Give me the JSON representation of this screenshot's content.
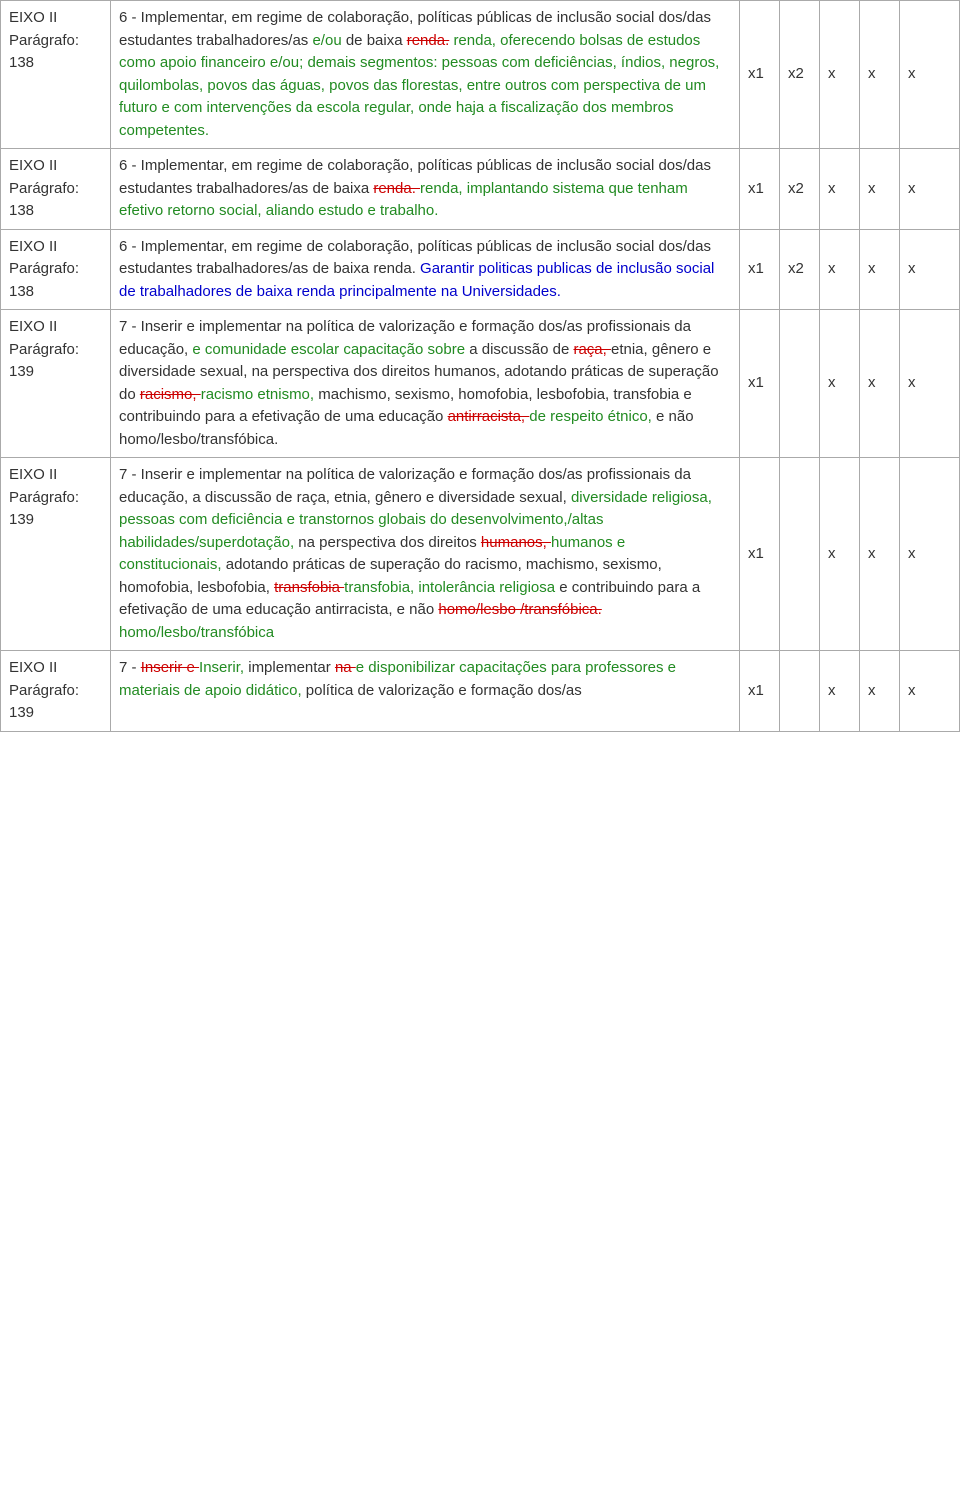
{
  "table": {
    "border_color": "#aaaaaa",
    "background": "#ffffff"
  },
  "colors": {
    "text": "#333333",
    "deleted": "#cc0000",
    "inserted": "#228b22",
    "alt_inserted": "#0000cc"
  },
  "fonts": {
    "family": "Verdana",
    "size_pt": 11
  },
  "rows": [
    {
      "label_line1": "EIXO II",
      "label_line2": "Parágrafo:",
      "label_line3": "138",
      "segments": [
        {
          "t": "6 - Implementar, em regime de colaboração, políticas públicas de inclusão social dos/das estudantes trabalhadores/as ",
          "c": "text"
        },
        {
          "t": "e/ou",
          "c": "ins"
        },
        {
          "t": " de baixa ",
          "c": "text"
        },
        {
          "t": "renda.",
          "c": "strike"
        },
        {
          "t": " ",
          "c": "text"
        },
        {
          "t": "renda, oferecendo bolsas de estudos como apoio financeiro e/ou; demais segmentos: pessoas com deficiências, índios, negros, quilombolas, povos das águas, povos das florestas, entre outros com perspectiva de um futuro e com intervenções da escola regular, onde haja a fiscalização dos membros competentes.",
          "c": "ins"
        }
      ],
      "marks": [
        "x1",
        "x2",
        "x",
        "x",
        "x"
      ]
    },
    {
      "label_line1": "EIXO II",
      "label_line2": "Parágrafo:",
      "label_line3": "138",
      "segments": [
        {
          "t": "6 - Implementar, em regime de colaboração, políticas públicas de inclusão social dos/das estudantes trabalhadores/as de baixa ",
          "c": "text"
        },
        {
          "t": "renda. ",
          "c": "strike"
        },
        {
          "t": "renda, implantando sistema que tenham efetivo retorno social, aliando estudo e trabalho.",
          "c": "ins"
        }
      ],
      "marks": [
        "x1",
        "x2",
        "x",
        "x",
        "x"
      ]
    },
    {
      "label_line1": "EIXO II",
      "label_line2": "Parágrafo:",
      "label_line3": "138",
      "segments": [
        {
          "t": "6 - Implementar, em regime de colaboração, políticas públicas de inclusão social dos/das estudantes trabalhadores/as de baixa renda. ",
          "c": "text"
        },
        {
          "t": "Garantir politicas publicas de inclusão social de trabalhadores de baixa renda principalmente na Universidades.",
          "c": "blue"
        }
      ],
      "marks": [
        "x1",
        "x2",
        "x",
        "x",
        "x"
      ]
    },
    {
      "label_line1": "EIXO II",
      "label_line2": "Parágrafo:",
      "label_line3": "139",
      "segments": [
        {
          "t": "7 - Inserir e implementar na política de valorização e formação dos/as profissionais da educação, ",
          "c": "text"
        },
        {
          "t": "e comunidade escolar capacitação sobre",
          "c": "ins"
        },
        {
          "t": " a discussão de ",
          "c": "text"
        },
        {
          "t": "raça, ",
          "c": "strike"
        },
        {
          "t": "etnia, gênero e diversidade sexual, na perspectiva dos direitos humanos, adotando práticas de superação do ",
          "c": "text"
        },
        {
          "t": "racismo, ",
          "c": "strike"
        },
        {
          "t": "racismo etnismo,",
          "c": "ins"
        },
        {
          "t": " machismo, sexismo, homofobia, lesbofobia, transfobia e contribuindo para a efetivação de uma educação ",
          "c": "text"
        },
        {
          "t": "antirracista, ",
          "c": "strike"
        },
        {
          "t": "de respeito étnico,",
          "c": "ins"
        },
        {
          "t": " e não homo/lesbo/transfóbica.",
          "c": "text"
        }
      ],
      "marks": [
        "x1",
        "",
        "x",
        "x",
        "x"
      ]
    },
    {
      "label_line1": "EIXO II",
      "label_line2": "Parágrafo:",
      "label_line3": "139",
      "segments": [
        {
          "t": "7 - Inserir e implementar na política de valorização e formação dos/as profissionais da educação, a discussão de raça, etnia, gênero e diversidade sexual, ",
          "c": "text"
        },
        {
          "t": "diversidade religiosa, pessoas com deficiência e transtornos globais do desenvolvimento,/altas habilidades/superdotação,",
          "c": "ins"
        },
        {
          "t": " na perspectiva dos direitos ",
          "c": "text"
        },
        {
          "t": "humanos, ",
          "c": "strike"
        },
        {
          "t": "humanos e constitucionais,",
          "c": "ins"
        },
        {
          "t": " adotando práticas de superação do racismo, machismo, sexismo, homofobia, lesbofobia, ",
          "c": "text"
        },
        {
          "t": "transfobia ",
          "c": "strike"
        },
        {
          "t": "transfobia, intolerância religiosa",
          "c": "ins"
        },
        {
          "t": " e contribuindo para a efetivação de uma educação antirracista, e não ",
          "c": "text"
        },
        {
          "t": "homo/lesbo /transfóbica. ",
          "c": "strike"
        },
        {
          "t": "homo/lesbo/transfóbica",
          "c": "ins"
        }
      ],
      "marks": [
        "x1",
        "",
        "x",
        "x",
        "x"
      ]
    },
    {
      "label_line1": "EIXO II",
      "label_line2": "Parágrafo:",
      "label_line3": "139",
      "segments": [
        {
          "t": "7 - ",
          "c": "text"
        },
        {
          "t": "Inserir e ",
          "c": "strike"
        },
        {
          "t": "Inserir,",
          "c": "ins"
        },
        {
          "t": " implementar ",
          "c": "text"
        },
        {
          "t": "na ",
          "c": "strike"
        },
        {
          "t": "e disponibilizar capacitações para professores e materiais de apoio didático,",
          "c": "ins"
        },
        {
          "t": " política de valorização e formação dos/as",
          "c": "text"
        }
      ],
      "marks": [
        "x1",
        "",
        "x",
        "x",
        "x"
      ]
    }
  ]
}
